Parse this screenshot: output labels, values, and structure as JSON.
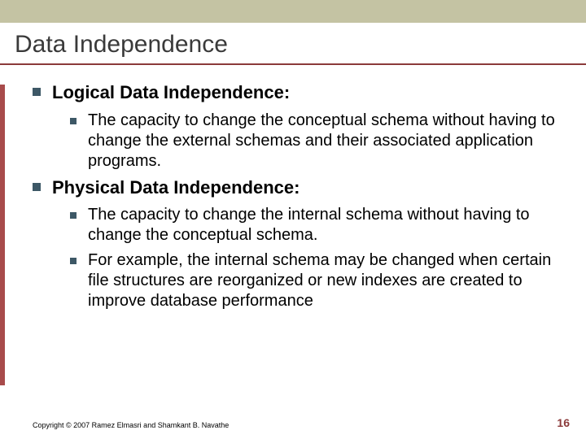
{
  "colors": {
    "top_band": "#c4c3a3",
    "title_text": "#3a3a3a",
    "underline": "#8b3a3a",
    "accent_bar": "#a84b4b",
    "bullet": "#3d5866",
    "pagenum": "#8b3a3a",
    "background": "#ffffff"
  },
  "title": "Data Independence",
  "items": [
    {
      "label": "Logical Data Independence:",
      "children": [
        "The capacity to change the conceptual schema without having to change the external schemas and their associated application programs."
      ]
    },
    {
      "label": "Physical Data Independence:",
      "children": [
        "The capacity to change the internal schema without having to change the conceptual schema.",
        "For example, the internal schema may be changed when certain file structures are reorganized or new indexes are created to improve database performance"
      ]
    }
  ],
  "footer": {
    "copyright": "Copyright © 2007 Ramez Elmasri and Shamkant B. Navathe",
    "page": "16"
  }
}
